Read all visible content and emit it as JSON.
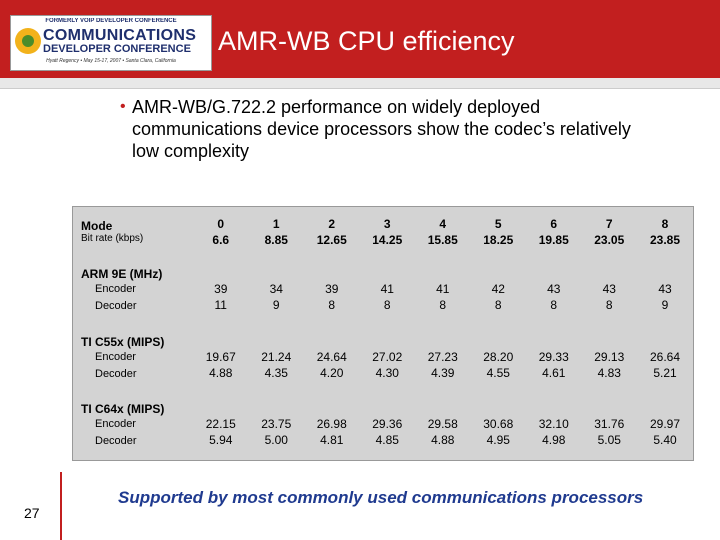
{
  "logo": {
    "top_text": "FORMERLY VOIP DEVELOPER CONFERENCE",
    "line1": "COMMUNICATIONS",
    "line2": "DEVELOPER CONFERENCE",
    "sub": "Hyatt Regency • May 15-17, 2007 • Santa Clara, California"
  },
  "title": "AMR-WB CPU efficiency",
  "bullet": "AMR-WB/G.722.2 performance on widely deployed communications device processors show the codec’s relatively low complexity",
  "table": {
    "header": {
      "mode_label": "Mode",
      "rate_label": "Bit rate (kbps)",
      "modes": [
        "0",
        "1",
        "2",
        "3",
        "4",
        "5",
        "6",
        "7",
        "8"
      ],
      "rates": [
        "6.6",
        "8.85",
        "12.65",
        "14.25",
        "15.85",
        "18.25",
        "19.85",
        "23.05",
        "23.85"
      ]
    },
    "groups": [
      {
        "name": "ARM 9E (MHz)",
        "row1_label": "Encoder",
        "row2_label": "Decoder",
        "encoder": [
          "39",
          "34",
          "39",
          "41",
          "41",
          "42",
          "43",
          "43",
          "43"
        ],
        "decoder": [
          "11",
          "9",
          "8",
          "8",
          "8",
          "8",
          "8",
          "8",
          "9"
        ]
      },
      {
        "name": "TI C55x (MIPS)",
        "row1_label": "Encoder",
        "row2_label": "Decoder",
        "encoder": [
          "19.67",
          "21.24",
          "24.64",
          "27.02",
          "27.23",
          "28.20",
          "29.33",
          "29.13",
          "26.64"
        ],
        "decoder": [
          "4.88",
          "4.35",
          "4.20",
          "4.30",
          "4.39",
          "4.55",
          "4.61",
          "4.83",
          "5.21"
        ]
      },
      {
        "name": "TI C64x (MIPS)",
        "row1_label": "Encoder",
        "row2_label": "Decoder",
        "encoder": [
          "22.15",
          "23.75",
          "26.98",
          "29.36",
          "29.58",
          "30.68",
          "32.10",
          "31.76",
          "29.97"
        ],
        "decoder": [
          "5.94",
          "5.00",
          "4.81",
          "4.85",
          "4.88",
          "4.95",
          "4.98",
          "5.05",
          "5.40"
        ]
      }
    ]
  },
  "tagline": "Supported by most commonly used communications processors",
  "slide_number": "27",
  "colors": {
    "header": "#c21f1f",
    "tagline": "#1f3a8f",
    "table_bg": "#d3d3d3"
  }
}
